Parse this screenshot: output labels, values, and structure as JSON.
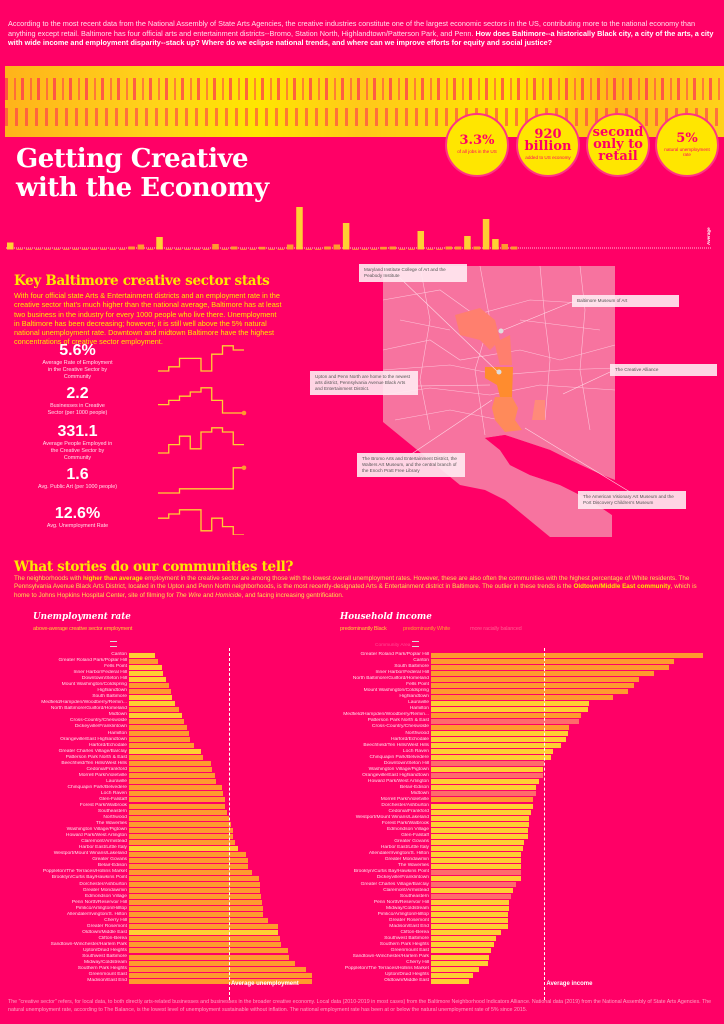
{
  "intro": {
    "text": "According to the most recent data from the National Assembly of State Arts Agencies, the creative industries constitute one of the largest economic sectors in the US, contributing more to the national economy than anything except retail. Baltimore has four official arts and entertainment districts--Bromo, Station North, Highlandtown/Patterson Park, and Penn. ",
    "bold": "How does Baltimore--a historically Black city, a city of the arts, a city with wide income and employment disparity--stack up? Where do we eclipse national trends, and where can we improve efforts for equity and social justice?"
  },
  "title": "Getting Creative with the Economy",
  "circles": [
    {
      "big": "3.3%",
      "small": "of all jobs in the US"
    },
    {
      "big": "920 billion",
      "small": "added to US economy"
    },
    {
      "big": "second only to retail",
      "small": ""
    },
    {
      "big": "5%",
      "small": "natural unemployment rate"
    }
  ],
  "colors": {
    "background": "#ff0066",
    "yellow": "#ffe600",
    "bar_yellow": "#ffcf33",
    "bar_orange": "#ff9a2e",
    "bar_pink": "#ff6b6b"
  },
  "strip": {
    "average_label": "Average",
    "values": [
      5.5,
      0.7,
      0.7,
      0.7,
      0,
      0.7,
      0.7,
      0.7,
      0.7,
      0,
      0.7,
      0.7,
      0.7,
      1.5,
      3.5,
      0.7,
      11,
      0,
      0.7,
      0,
      0.7,
      0,
      4,
      0.7,
      1.5,
      0,
      0,
      1,
      0.7,
      0,
      3.5,
      41,
      0.7,
      0.7,
      1.5,
      3.5,
      25,
      0.7,
      0,
      0,
      1,
      1.5,
      0.7,
      0.7,
      17,
      0.7,
      0.7,
      1.5,
      1.5,
      12,
      1.5,
      29,
      9,
      4,
      1.5
    ]
  },
  "key": {
    "heading": "Key Baltimore creative sector stats",
    "text": "With four official state Arts & Entertainment districts and an employment rate in the creative sector that's much higher than the national average, Baltimore has at least two business in the industry for every 1000 people who live there. Unemployment in Baltimore has been decreasing; however, it is still well above the 5% natural national unemployment rate. Downtown and midtown Baltimore have the highest concentrations of creative sector employment.",
    "stats": [
      {
        "value": "5.6%",
        "label": "Average Rate of Employment in the Creative Sector by Community",
        "trend": [
          0,
          1,
          3,
          3,
          0,
          4,
          6,
          5
        ],
        "dot": false
      },
      {
        "value": "2.2",
        "label": "Businesses in Creative Sector (per 1000 people)",
        "trend": [
          2,
          3,
          4,
          5,
          6,
          3,
          0,
          0
        ],
        "dot": true
      },
      {
        "value": "331.1",
        "label": "Average People Employed in the Creative Sector by Community",
        "trend": [
          0,
          2,
          4,
          1,
          5,
          6,
          5,
          2
        ],
        "dot": false
      },
      {
        "value": "1.6",
        "label": "Avg. Public Art (per 1000 people)",
        "trend": [
          0,
          0,
          1,
          1,
          1,
          1,
          1,
          6
        ],
        "dot": true
      },
      {
        "value": "12.6%",
        "label": "Avg. Unemployment Rate",
        "trend": [
          4,
          5,
          6,
          6,
          1,
          4,
          2,
          0
        ],
        "dot": false
      }
    ]
  },
  "map": {
    "annotations": [
      "Maryland Institute College of Art and the Peabody Institute",
      "Baltimore Museum of Art",
      "The Creative Alliance",
      "Upton and Penn North are home to the newest arts district, Pennsylvania Avenue Black Arts and Entertainment District.",
      "The Bromo Arts and Entertainment District, the Walters Art Museum, and the central branch of the Enoch Pratt Free Library",
      "The American Visionary Art Museum and the Port Discovery Children's Museum"
    ]
  },
  "stories": {
    "heading": "What stories do our communities tell?",
    "p1": "The neighborhoods with ",
    "p1b": "higher than average",
    "p2": " employment in the creative sector are among those with the lowest overall unemployment rates. However, these are also often the communities with the highest percentage of White residents. The Pennsylvania Avenue Black Arts District, located in the Upton and Penn North neighborhoods, is the most recently-designated Arts & Entertainment district in Baltimore. The outlier in these trends is the ",
    "p2b": "Oldtown/Middle East community",
    "p3": ", which is home to Johns Hopkins Hospital Center, site of filming for ",
    "p3i": "The Wire",
    "p4": " and ",
    "p4i": "Homicide",
    "p5": ", and facing increasing gentrification."
  },
  "chart_data": [
    {
      "type": "bar",
      "title": "Unemployment rate",
      "legend": [
        {
          "label": "above-average creative sector employment",
          "color": "#ffcf33"
        }
      ],
      "average_label": "Average unemployment",
      "average": 12.6,
      "unit": "%",
      "rows": [
        {
          "name": "Canton",
          "value": 3.3,
          "above": true
        },
        {
          "name": "Greater Roland Park/Poplar Hill",
          "value": 3.7,
          "above": false
        },
        {
          "name": "Fells Point",
          "value": 4.1,
          "above": true
        },
        {
          "name": "Inner Harbor/Federal Hill",
          "value": 4.3,
          "above": true
        },
        {
          "name": "Downtown/Seton Hill",
          "value": 4.7,
          "above": true
        },
        {
          "name": "Mount Washington/Coldspring",
          "value": 5.0,
          "above": false
        },
        {
          "name": "Highlandtown",
          "value": 5.3,
          "above": false
        },
        {
          "name": "South Baltimore",
          "value": 5.4,
          "above": true
        },
        {
          "name": "Medfield/Hampden/Woodberry/Remin...",
          "value": 5.8,
          "above": true
        },
        {
          "name": "North Baltimore/Guilford/Homeland",
          "value": 6.3,
          "above": false
        },
        {
          "name": "Midtown",
          "value": 6.7,
          "above": true
        },
        {
          "name": "Cross-Country/Cheswolde",
          "value": 6.9,
          "above": false
        },
        {
          "name": "Dickeyville/Franklintown",
          "value": 7.3,
          "above": false
        },
        {
          "name": "Hamilton",
          "value": 7.6,
          "above": false
        },
        {
          "name": "Orangeville/East Highlandtown",
          "value": 7.7,
          "above": false
        },
        {
          "name": "Harford/Echodale",
          "value": 8.2,
          "above": false
        },
        {
          "name": "Greater Charles Village/Barclay",
          "value": 9.1,
          "above": true
        },
        {
          "name": "Patterson Park North & East",
          "value": 9.3,
          "above": false
        },
        {
          "name": "Beechfield/Ten Hills/West Hills",
          "value": 10.3,
          "above": false
        },
        {
          "name": "Cedonia/Frankford",
          "value": 10.5,
          "above": false
        },
        {
          "name": "Morrell Park/Violetville",
          "value": 10.8,
          "above": false
        },
        {
          "name": "Lauraville",
          "value": 10.9,
          "above": false
        },
        {
          "name": "Chinquapin Park/Belvedere",
          "value": 11.7,
          "above": false
        },
        {
          "name": "Loch Raven",
          "value": 11.9,
          "above": false
        },
        {
          "name": "Glen-Falstaff",
          "value": 12.1,
          "above": false
        },
        {
          "name": "Forest Park/Walbrook",
          "value": 12.1,
          "above": false
        },
        {
          "name": "Southeastern",
          "value": 12.3,
          "above": false
        },
        {
          "name": "Northwood",
          "value": 12.6,
          "above": false
        },
        {
          "name": "The Waverlies",
          "value": 12.9,
          "above": false
        },
        {
          "name": "Washington Village/Pigtown",
          "value": 13.1,
          "above": false
        },
        {
          "name": "Howard Park/West Arlington",
          "value": 13.1,
          "above": false
        },
        {
          "name": "Claremont/Armistead",
          "value": 13.3,
          "above": false
        },
        {
          "name": "Harbor East/Little Italy",
          "value": 13.7,
          "above": true
        },
        {
          "name": "Westport/Mount Winans/Lakeland",
          "value": 14.8,
          "above": false
        },
        {
          "name": "Greater Govans",
          "value": 15.0,
          "above": false
        },
        {
          "name": "Belair-Edison",
          "value": 15.0,
          "above": false
        },
        {
          "name": "Poppleton/The Terraces/Hollins Market",
          "value": 15.5,
          "above": false
        },
        {
          "name": "Brooklyn/Curtis Bay/Hawkins Point",
          "value": 16.4,
          "above": false
        },
        {
          "name": "Dorchester/Ashburton",
          "value": 16.5,
          "above": false
        },
        {
          "name": "Greater Mondawmin",
          "value": 16.5,
          "above": false
        },
        {
          "name": "Edmondson Village",
          "value": 16.6,
          "above": false
        },
        {
          "name": "Penn North/Reservoir Hill",
          "value": 16.7,
          "above": false
        },
        {
          "name": "Pimlico/Arlington/Hilltop",
          "value": 16.9,
          "above": false
        },
        {
          "name": "Allendale/Irvington/S. Hilton",
          "value": 16.9,
          "above": false
        },
        {
          "name": "Cherry Hill",
          "value": 17.5,
          "above": false
        },
        {
          "name": "Greater Rosemont",
          "value": 18.8,
          "above": false
        },
        {
          "name": "Oldtown/Middle East",
          "value": 18.8,
          "above": true
        },
        {
          "name": "Clifton-Berea",
          "value": 19.0,
          "above": false
        },
        {
          "name": "Sandtown-Winchester/Harlem Park",
          "value": 19.2,
          "above": false
        },
        {
          "name": "Upton/Druid Heights",
          "value": 20.0,
          "above": false
        },
        {
          "name": "Southwest Baltimore",
          "value": 20.2,
          "above": false
        },
        {
          "name": "Midway/Coldstream",
          "value": 20.9,
          "above": false
        },
        {
          "name": "Southern Park Heights",
          "value": 22.3,
          "above": false
        },
        {
          "name": "Greenmount East",
          "value": 23.0,
          "above": false
        },
        {
          "name": "Madison/East End",
          "value": 23.1,
          "above": false
        }
      ]
    },
    {
      "type": "bar",
      "title": "Household income",
      "axis_label": "Community Area",
      "legend": [
        {
          "label": "predominantly Black",
          "color": "#ffcf33"
        },
        {
          "label": "predominantly White",
          "color": "#ff9a2e"
        },
        {
          "label": "more racially balanced",
          "color": "#ff6b6b"
        }
      ],
      "average_label": "Average income",
      "average": 68,
      "unit": "$K",
      "rows": [
        {
          "name": "Greater Roland Park/Poplar Hill",
          "value": 163,
          "group": "White"
        },
        {
          "name": "Canton",
          "value": 146,
          "group": "White"
        },
        {
          "name": "South Baltimore",
          "value": 143,
          "group": "White"
        },
        {
          "name": "Inner Harbor/Federal Hill",
          "value": 134,
          "group": "White"
        },
        {
          "name": "North Baltimore/Guilford/Homeland",
          "value": 125,
          "group": "White"
        },
        {
          "name": "Fells Point",
          "value": 122,
          "group": "White"
        },
        {
          "name": "Mount Washington/Coldspring",
          "value": 118,
          "group": "White"
        },
        {
          "name": "Highlandtown",
          "value": 109,
          "group": "White"
        },
        {
          "name": "Lauraville",
          "value": 95,
          "group": "Black"
        },
        {
          "name": "Hamilton",
          "value": 94,
          "group": "Black"
        },
        {
          "name": "Medfield/Hampden/Woodberry/Remin...",
          "value": 90,
          "group": "White"
        },
        {
          "name": "Patterson Park North & East",
          "value": 89,
          "group": "Balanced"
        },
        {
          "name": "Cross-Country/Cheswolde",
          "value": 83,
          "group": "White"
        },
        {
          "name": "Northwood",
          "value": 82,
          "group": "Black"
        },
        {
          "name": "Harford/Echodale",
          "value": 81,
          "group": "Black"
        },
        {
          "name": "Beechfield/Ten Hills/West Hills",
          "value": 78,
          "group": "Black"
        },
        {
          "name": "Loch Raven",
          "value": 73,
          "group": "Black"
        },
        {
          "name": "Chinquapin Park/Belvedere",
          "value": 72,
          "group": "Black"
        },
        {
          "name": "Downtown/Seton Hill",
          "value": 68,
          "group": "Balanced"
        },
        {
          "name": "Washington Village/Pigtown",
          "value": 67,
          "group": "Black"
        },
        {
          "name": "Orangeville/East Highlandtown",
          "value": 67,
          "group": "Balanced"
        },
        {
          "name": "Howard Park/West Arlington",
          "value": 65,
          "group": "Black"
        },
        {
          "name": "Belair-Edison",
          "value": 63,
          "group": "Black"
        },
        {
          "name": "Midtown",
          "value": 63,
          "group": "Balanced"
        },
        {
          "name": "Morrell Park/Violetville",
          "value": 61,
          "group": "White"
        },
        {
          "name": "Dorchester/Ashburton",
          "value": 61,
          "group": "Black"
        },
        {
          "name": "Cedonia/Frankford",
          "value": 60,
          "group": "Black"
        },
        {
          "name": "Westport/Mount Winans/Lakeland",
          "value": 59,
          "group": "Black"
        },
        {
          "name": "Forest Park/Walbrook",
          "value": 59,
          "group": "Black"
        },
        {
          "name": "Edmondson Village",
          "value": 58,
          "group": "Black"
        },
        {
          "name": "Glen-Falstaff",
          "value": 58,
          "group": "Black"
        },
        {
          "name": "Greater Govans",
          "value": 56,
          "group": "Black"
        },
        {
          "name": "Harbor East/Little Italy",
          "value": 55,
          "group": "Black"
        },
        {
          "name": "Allendale/Irvington/S. Hilton",
          "value": 54,
          "group": "Black"
        },
        {
          "name": "Greater Mondawmin",
          "value": 54,
          "group": "Black"
        },
        {
          "name": "The Waverlies",
          "value": 54,
          "group": "Black"
        },
        {
          "name": "Brooklyn/Curtis Bay/Hawkins Point",
          "value": 54,
          "group": "Balanced"
        },
        {
          "name": "Dickeyville/Franklintown",
          "value": 54,
          "group": "Black"
        },
        {
          "name": "Greater Charles Village/Barclay",
          "value": 51,
          "group": "Balanced"
        },
        {
          "name": "Claremont/Armistead",
          "value": 49,
          "group": "Black"
        },
        {
          "name": "Southeastern",
          "value": 48,
          "group": "Balanced"
        },
        {
          "name": "Penn North/Reservoir Hill",
          "value": 47,
          "group": "Black"
        },
        {
          "name": "Midway/Coldstream",
          "value": 47,
          "group": "Black"
        },
        {
          "name": "Pimlico/Arlington/Hilltop",
          "value": 46,
          "group": "Black"
        },
        {
          "name": "Greater Rosemont",
          "value": 46,
          "group": "Black"
        },
        {
          "name": "Madison/East End",
          "value": 46,
          "group": "Black"
        },
        {
          "name": "Clifton-Berea",
          "value": 42,
          "group": "Black"
        },
        {
          "name": "Southwest Baltimore",
          "value": 39,
          "group": "Black"
        },
        {
          "name": "Southern Park Heights",
          "value": 38,
          "group": "Black"
        },
        {
          "name": "Greenmount East",
          "value": 36,
          "group": "Black"
        },
        {
          "name": "Sandtown-Winchester/Harlem Park",
          "value": 35,
          "group": "Black"
        },
        {
          "name": "Cherry Hill",
          "value": 34,
          "group": "Black"
        },
        {
          "name": "Poppleton/The Terraces/Hollins Market",
          "value": 29,
          "group": "Black"
        },
        {
          "name": "Upton/Druid Heights",
          "value": 25,
          "group": "Black"
        },
        {
          "name": "Oldtown/Middle East",
          "value": 23,
          "group": "Black"
        }
      ]
    }
  ],
  "footer": "The \"creative sector\" refers, for local data, to both directly arts-related businesses and businesses in the broader creative economy. Local data (2010-2019 in most cases) from the Baltimore Neighborhood Indicators Alliance. National data (2019) from the National Assembly of State Arts Agencies. The natural unemployment rate, according to The Balance, is the lowest level of unemployment sustainable without inflation. The national employment rate has been at or below the natural unemployment rate of 5% since 2015."
}
